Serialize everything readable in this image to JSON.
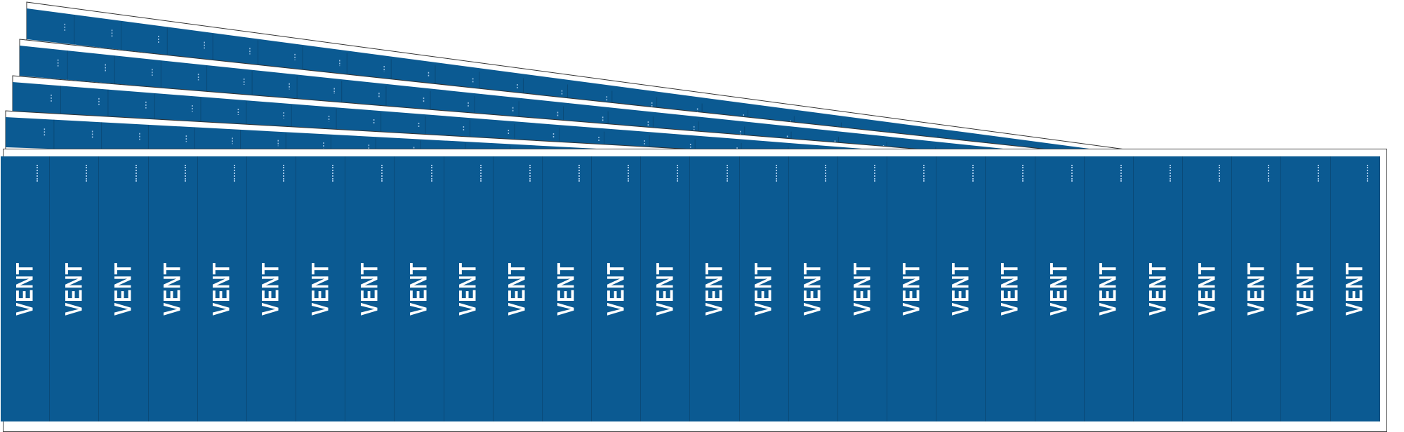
{
  "product": {
    "label_text": "VENT",
    "labels_per_card": 28,
    "stacked_cards_behind": 4,
    "colors": {
      "background": "#0b5a92",
      "text": "#ffffff",
      "border": "#ffffff"
    }
  }
}
